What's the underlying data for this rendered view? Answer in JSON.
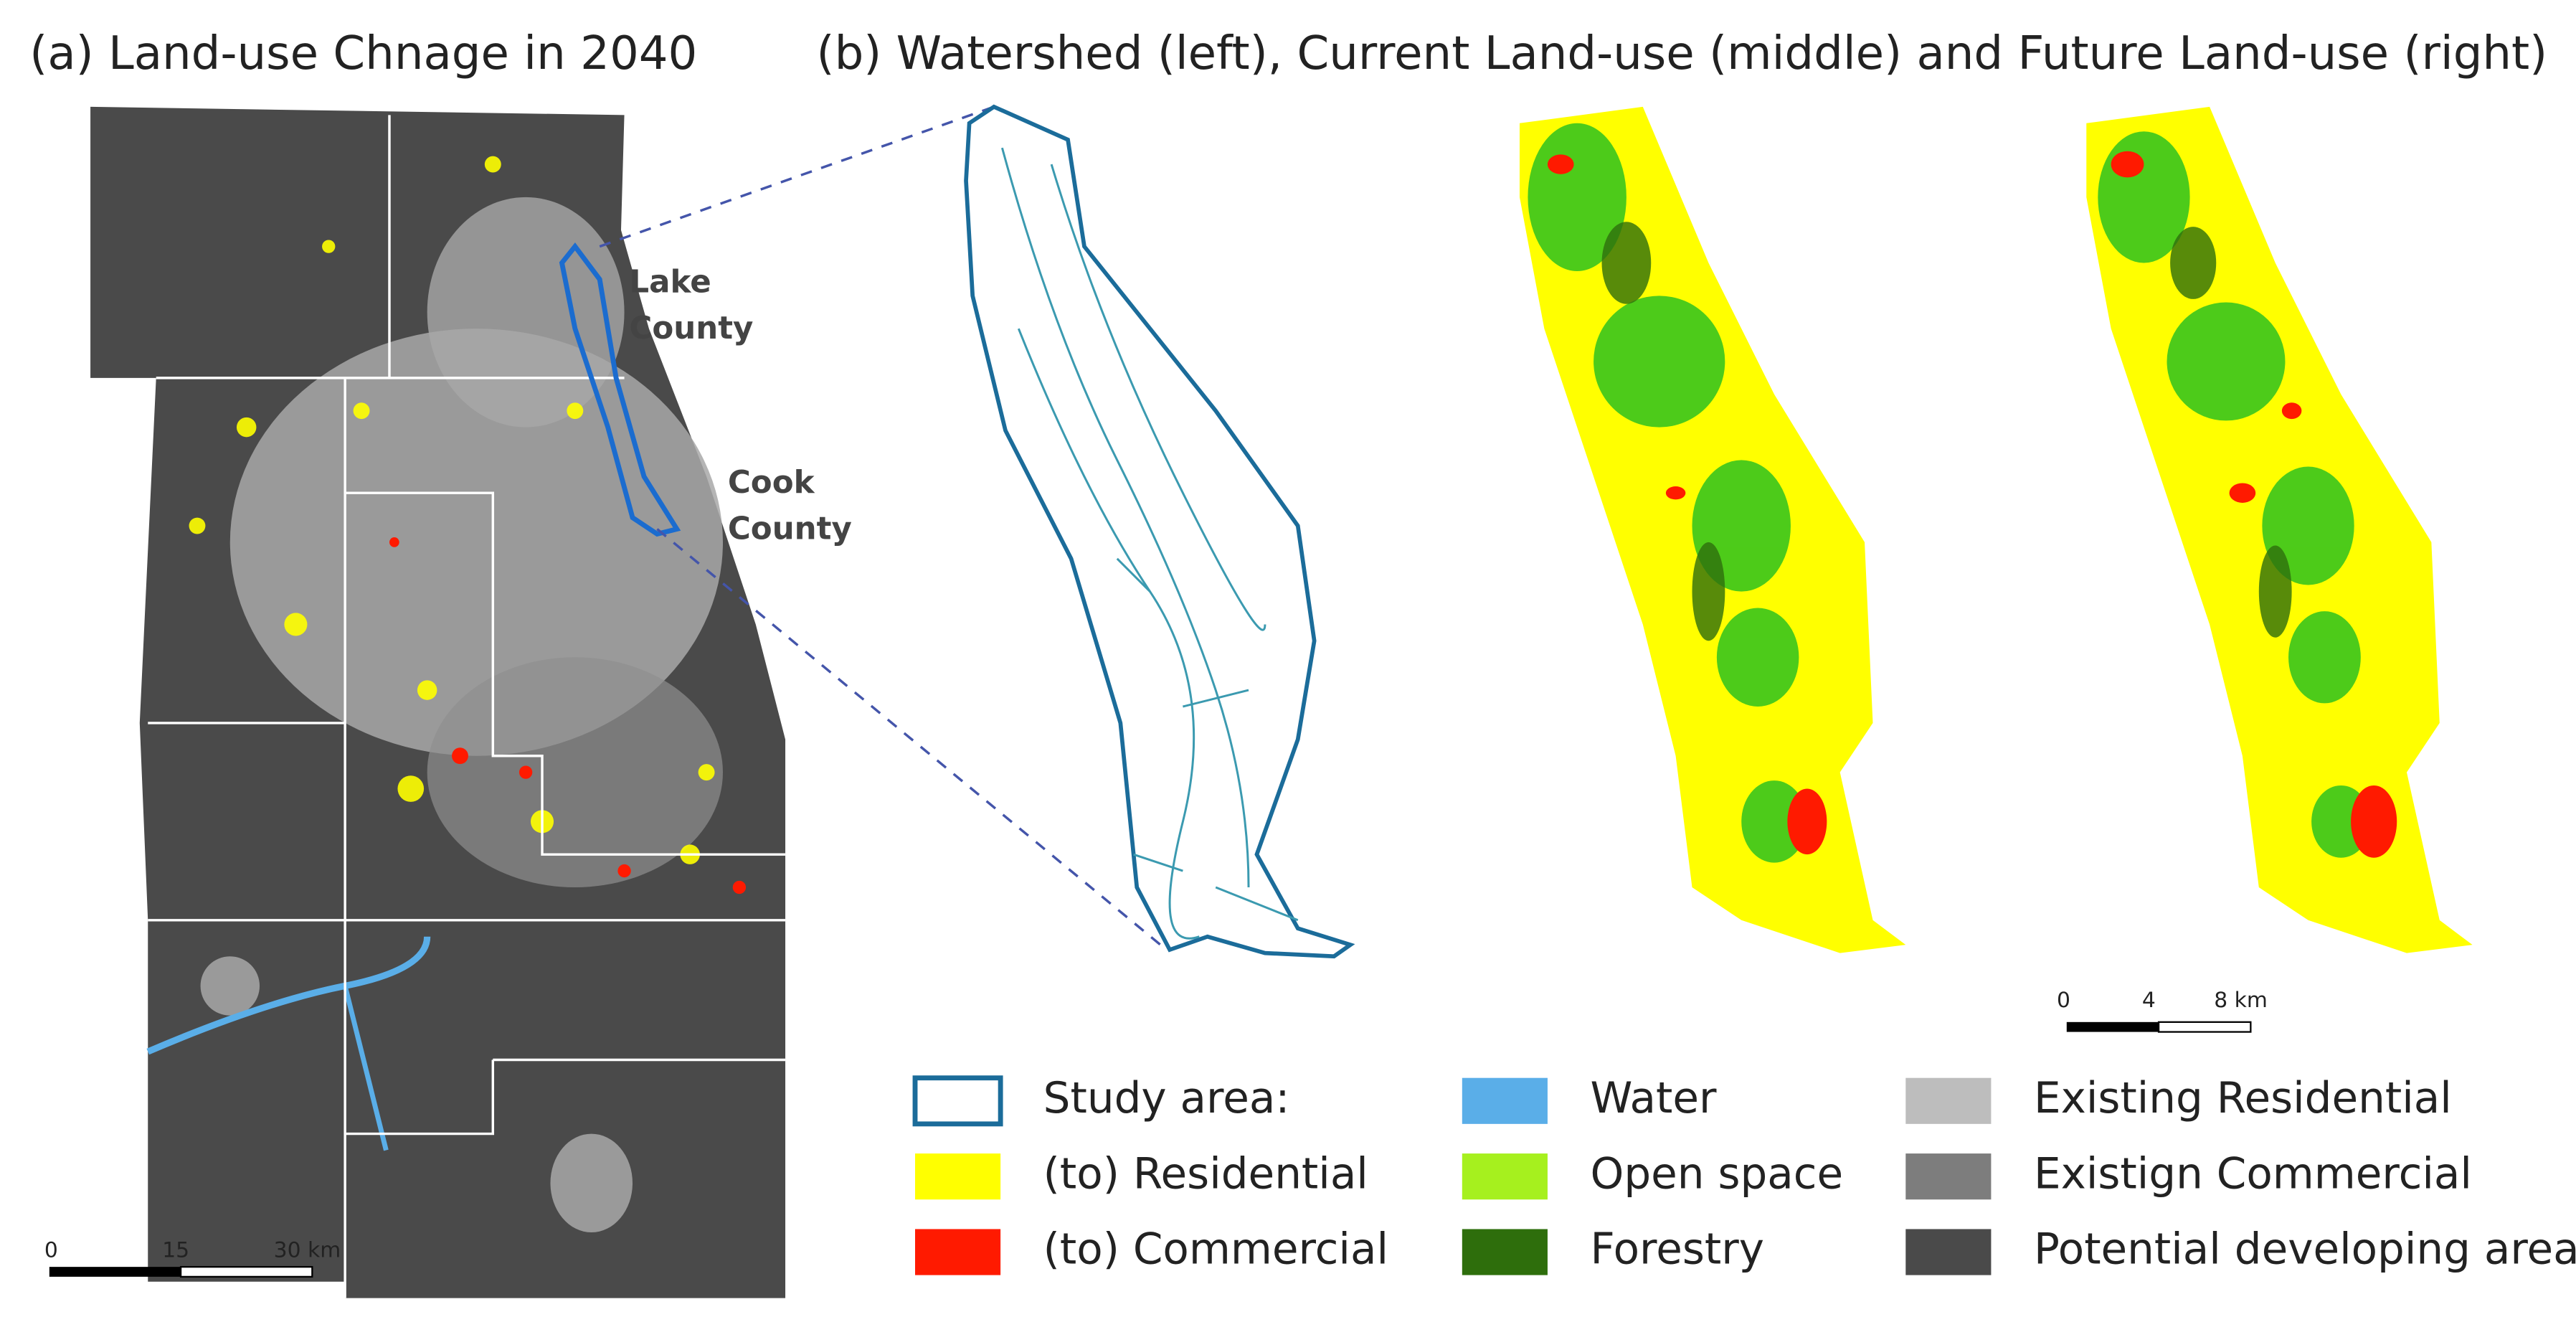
{
  "panel_a": {
    "title": "(a) Land-use Chnage in 2040",
    "labels": [
      [
        "Lake",
        "County"
      ],
      [
        "Cook",
        "County"
      ]
    ],
    "scale_bar": [
      "0",
      "15",
      "30 km"
    ]
  },
  "panel_b": {
    "title": "(b) Watershed (left), Current Land-use (middle) and Future Land-use (right)",
    "scale_bar": [
      "0",
      "4",
      "8 km"
    ]
  },
  "legend": [
    {
      "label": "Study area:",
      "color": "#1b6c9a",
      "style": "outline"
    },
    {
      "label": "(to) Residential",
      "color": "#ffff00"
    },
    {
      "label": "(to) Commercial",
      "color": "#ff1a00"
    },
    {
      "label": "Water",
      "color": "#5aaee8"
    },
    {
      "label": "Open space",
      "color": "#a6f01e"
    },
    {
      "label": "Forestry",
      "color": "#2e6e0c"
    },
    {
      "label": "Existing Residential",
      "color": "#bdbdbd"
    },
    {
      "label": "Existign Commercial",
      "color": "#7d7d7d"
    },
    {
      "label": "Potential developing area",
      "color": "#4a4a4a"
    }
  ]
}
